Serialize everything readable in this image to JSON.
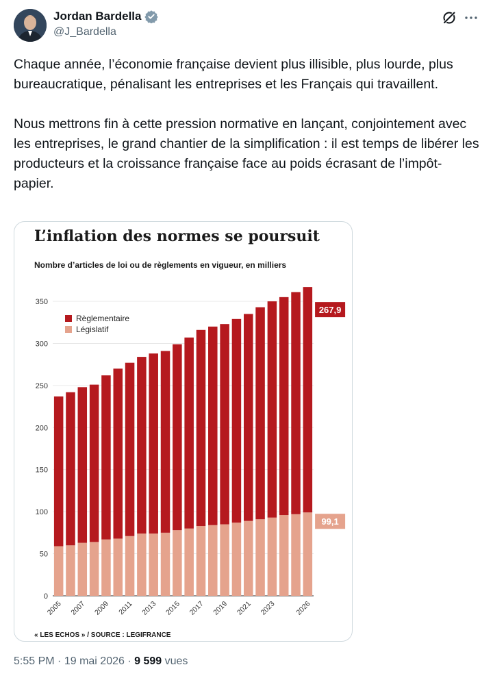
{
  "tweet": {
    "author": {
      "name": "Jordan Bardella",
      "handle": "@J_Bardella"
    },
    "text": "Chaque année, l’économie française devient plus illisible, plus lourde, plus bureaucratique, pénalisant les entreprises et les Français qui travaillent.\n\nNous mettrons fin à cette pression normative en lançant, conjointement avec les entreprises, le grand chantier de la simplification : il est temps de libérer les producteurs et la croissance française face au poids écrasant de l’impôt-papier.",
    "time": "5:55 PM",
    "date": "19 mai 2026",
    "views": "9 599",
    "views_label": "vues",
    "separator": "·"
  },
  "chart_data": {
    "type": "bar",
    "stacked": true,
    "title": "L’inflation des normes se poursuit",
    "subtitle": "Nombre d’articles de loi ou de règlements en vigueur, en milliers",
    "source": "« LES ECHOS » / SOURCE : LEGIFRANCE",
    "categories": [
      "2005",
      "2006",
      "2007",
      "2008",
      "2009",
      "2010",
      "2011",
      "2012",
      "2013",
      "2014",
      "2015",
      "2016",
      "2017",
      "2018",
      "2019",
      "2020",
      "2021",
      "2022",
      "2023",
      "2024",
      "2025",
      "2026"
    ],
    "x_tick_labels": [
      "2005",
      "2007",
      "2009",
      "2011",
      "2013",
      "2015",
      "2017",
      "2019",
      "2021",
      "2023",
      "2026"
    ],
    "x_tick_categories": [
      "2005",
      "2007",
      "2009",
      "2011",
      "2013",
      "2015",
      "2017",
      "2019",
      "2021",
      "2023",
      "2026"
    ],
    "yticks": [
      0,
      50,
      100,
      150,
      200,
      250,
      300,
      350
    ],
    "ylim": [
      0,
      360
    ],
    "legend_position": "top-left",
    "series": [
      {
        "name": "Législatif",
        "color": "#e5a38d",
        "values": [
          59,
          60,
          63,
          64,
          67,
          68,
          71,
          74,
          74,
          75,
          78,
          80,
          83,
          84,
          85,
          87,
          89,
          91,
          93,
          96,
          97,
          99.1
        ]
      },
      {
        "name": "Règlementaire",
        "color": "#b5191e",
        "values": [
          178,
          182,
          185,
          187,
          195,
          202,
          206,
          210,
          214,
          216,
          221,
          227,
          233,
          236,
          238,
          242,
          246,
          252,
          257,
          259,
          264,
          267.9
        ]
      }
    ],
    "end_labels": {
      "reglementaire": "267,9",
      "legislatif": "99,1"
    }
  }
}
